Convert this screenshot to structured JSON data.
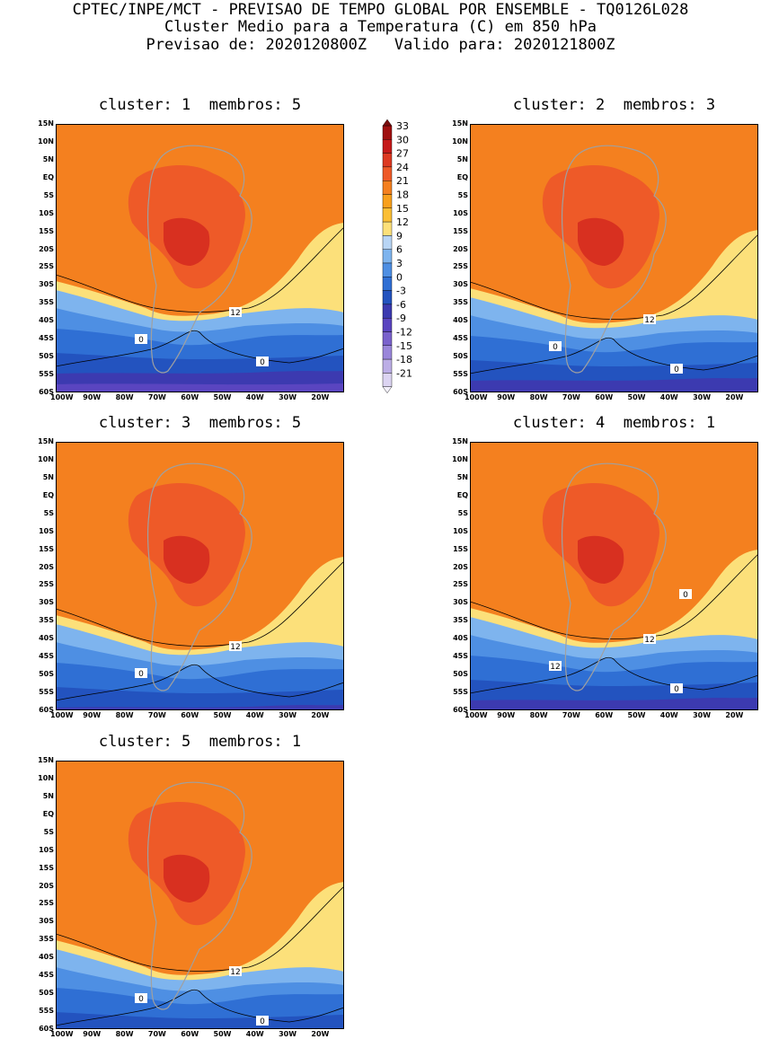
{
  "header": {
    "line1": "CPTEC/INPE/MCT - PREVISAO DE TEMPO GLOBAL POR ENSEMBLE - TQ0126L028",
    "line2": "Cluster Medio para a Temperatura (C) em 850 hPa",
    "line3": "Previsao de: 2020120800Z   Valido para: 2020121800Z"
  },
  "panels": [
    {
      "title": "cluster: 1  membros: 5",
      "contour_labels": [
        "12",
        "0",
        "0"
      ]
    },
    {
      "title": "cluster: 2  membros: 3",
      "contour_labels": [
        "12",
        "0",
        "0"
      ]
    },
    {
      "title": "cluster: 3  membros: 5",
      "contour_labels": [
        "12",
        "0"
      ]
    },
    {
      "title": "cluster: 4  membros: 1",
      "contour_labels": [
        "12",
        "12",
        "0",
        "0"
      ]
    },
    {
      "title": "cluster: 5  membros: 1",
      "contour_labels": [
        "12",
        "0",
        "0"
      ]
    }
  ],
  "axes": {
    "lat_ticks": [
      "15N",
      "10N",
      "5N",
      "EQ",
      "5S",
      "10S",
      "15S",
      "20S",
      "25S",
      "30S",
      "35S",
      "40S",
      "45S",
      "50S",
      "55S",
      "60S"
    ],
    "lon_ticks": [
      "100W",
      "90W",
      "80W",
      "70W",
      "60W",
      "50W",
      "40W",
      "30W",
      "20W"
    ]
  },
  "colorbar": {
    "labels": [
      "33",
      "30",
      "27",
      "24",
      "21",
      "18",
      "15",
      "12",
      "9",
      "6",
      "3",
      "0",
      "-3",
      "-6",
      "-9",
      "-12",
      "-15",
      "-18",
      "-21"
    ],
    "colors": [
      "#a01010",
      "#c51a1a",
      "#dd3a22",
      "#ee5a28",
      "#f4801f",
      "#f8a01c",
      "#fbbf35",
      "#fce07a",
      "#b8d5f5",
      "#7eb4ee",
      "#4e8fe3",
      "#2f6fd4",
      "#2353bf",
      "#3c3ab0",
      "#5a45c0",
      "#7a62cc",
      "#9a86da",
      "#bcaee6",
      "#dcd4f2"
    ]
  },
  "colors": {
    "warm_core": "#d83020",
    "warm": "#ee5a28",
    "orange": "#f4801f",
    "amber": "#fbbf35",
    "yellow": "#fce07a",
    "light_blue": "#7eb4ee",
    "blue": "#2f6fd4",
    "violet": "#5a45c0",
    "land_outline": "#a0a0a0"
  }
}
